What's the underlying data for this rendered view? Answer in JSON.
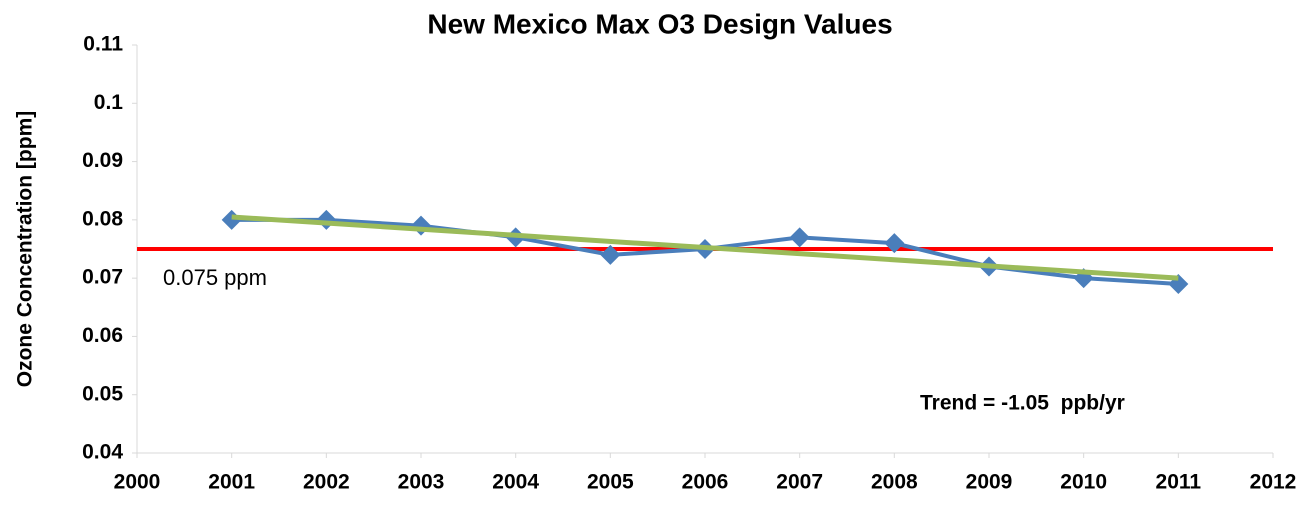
{
  "chart_data": {
    "type": "line",
    "title": "New Mexico Max O3 Design Values",
    "y_label": "Ozone Concentration [ppm]",
    "xlim": [
      2000,
      2012
    ],
    "xticks": [
      2000,
      2001,
      2002,
      2003,
      2004,
      2005,
      2006,
      2007,
      2008,
      2009,
      2010,
      2011,
      2012
    ],
    "ylim": [
      0.04,
      0.11
    ],
    "yticks": [
      0.04,
      0.05,
      0.06,
      0.07,
      0.08,
      0.09,
      0.1,
      0.11
    ],
    "series": [
      {
        "color": "#4a7ebb",
        "marker": "diamond",
        "x": [
          2001,
          2002,
          2003,
          2004,
          2005,
          2006,
          2007,
          2008,
          2009,
          2010,
          2011
        ],
        "values": [
          0.08,
          0.08,
          0.079,
          0.077,
          0.074,
          0.075,
          0.077,
          0.076,
          0.072,
          0.07,
          0.069
        ]
      },
      {
        "color": "#9bbb59",
        "marker": "none",
        "x": [
          2001,
          2011
        ],
        "values": [
          0.0805,
          0.07
        ]
      }
    ],
    "reference_line": {
      "value": 0.075,
      "label": "0.075 ppm",
      "color": "#ff0000"
    },
    "annotation": "Trend = -1.05  ppb/yr"
  }
}
